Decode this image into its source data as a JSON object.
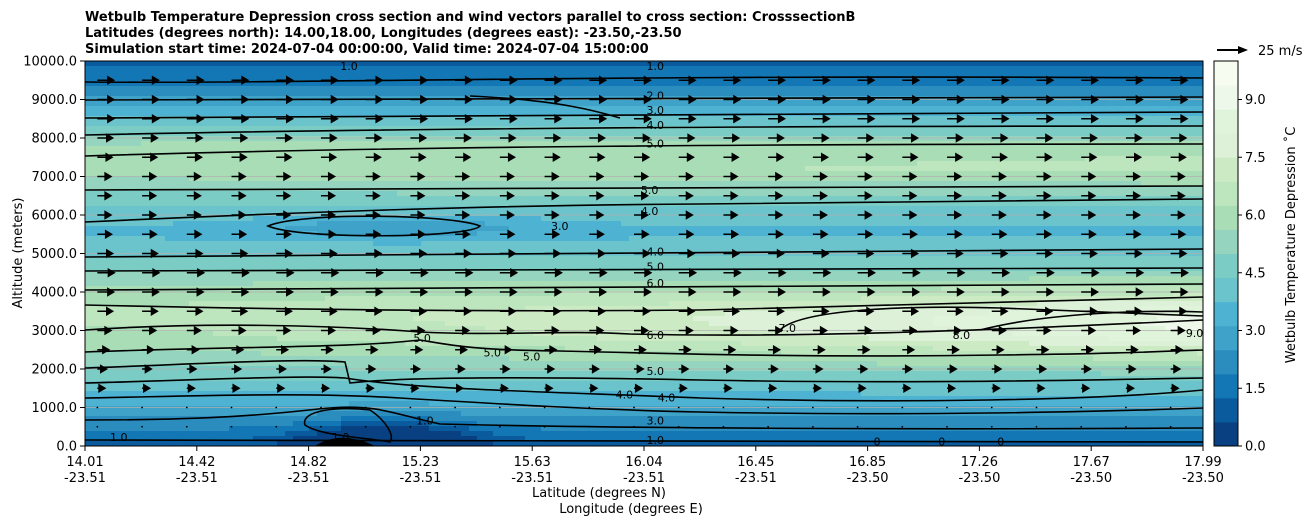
{
  "chart_data": {
    "type": "contour",
    "title": [
      "Wetbulb Temperature Depression cross section and wind vectors parallel to cross section: CrosssectionB",
      "Latitudes (degrees north): 14.00,18.00, Longitudes (degrees east): -23.50,-23.50",
      "Simulation start time: 2024-07-04 00:00:00, Valid time: 2024-07-04 15:00:00"
    ],
    "xlabel": "Latitude (degrees N)",
    "xlabel2": "Longitude (degrees E)",
    "ylabel": "Altitude (meters)",
    "x_ticks": [
      {
        "lat": "14.01",
        "lon": "-23.51"
      },
      {
        "lat": "14.42",
        "lon": "-23.51"
      },
      {
        "lat": "14.82",
        "lon": "-23.51"
      },
      {
        "lat": "15.23",
        "lon": "-23.51"
      },
      {
        "lat": "15.63",
        "lon": "-23.51"
      },
      {
        "lat": "16.04",
        "lon": "-23.51"
      },
      {
        "lat": "16.45",
        "lon": "-23.51"
      },
      {
        "lat": "16.85",
        "lon": "-23.50"
      },
      {
        "lat": "17.26",
        "lon": "-23.50"
      },
      {
        "lat": "17.67",
        "lon": "-23.50"
      },
      {
        "lat": "17.99",
        "lon": "-23.50"
      }
    ],
    "y_ticks": [
      "0.0",
      "1000.0",
      "2000.0",
      "3000.0",
      "4000.0",
      "5000.0",
      "6000.0",
      "7000.0",
      "8000.0",
      "9000.0",
      "10000.0"
    ],
    "ylim": [
      0,
      10000
    ],
    "grid": "horizontal",
    "colorbar": {
      "label": "Wetbulb Temperature Depression $^\\circ$C",
      "display_label": "Wetbulb Temperature Depression ˚C",
      "ticks": [
        "0.0",
        "1.5",
        "3.0",
        "4.5",
        "6.0",
        "7.5",
        "9.0"
      ],
      "range": [
        0,
        10
      ],
      "colormap": "GnBu_r",
      "colors": [
        "#084081",
        "#0a5a9e",
        "#1277b4",
        "#2b8cbe",
        "#3fa2c9",
        "#4eb3d3",
        "#6bc3cb",
        "#7bccc4",
        "#95d5bf",
        "#a8ddb5",
        "#bde5be",
        "#ccebc5",
        "#dcf1d7",
        "#e0f3db",
        "#eef8ea",
        "#f7fcf0"
      ]
    },
    "quiver_key": {
      "label": "25 m/s",
      "speed": 25
    },
    "contour_labels": [
      {
        "text": "1.0",
        "x": 16.04,
        "y": 9870
      },
      {
        "text": "2.0",
        "x": 16.04,
        "y": 9100
      },
      {
        "text": "3.0",
        "x": 16.04,
        "y": 8730
      },
      {
        "text": "4.0",
        "x": 16.04,
        "y": 8340
      },
      {
        "text": "5.0",
        "x": 16.04,
        "y": 7860
      },
      {
        "text": "5.0",
        "x": 16.02,
        "y": 6650
      },
      {
        "text": "4.0",
        "x": 16.02,
        "y": 6100
      },
      {
        "text": "3.0",
        "x": 15.7,
        "y": 5720
      },
      {
        "text": "4.0",
        "x": 16.04,
        "y": 5050
      },
      {
        "text": "5.0",
        "x": 16.04,
        "y": 4660
      },
      {
        "text": "6.0",
        "x": 16.04,
        "y": 4240
      },
      {
        "text": "6.0",
        "x": 16.04,
        "y": 2880
      },
      {
        "text": "5.0",
        "x": 16.04,
        "y": 1950
      },
      {
        "text": "4.0",
        "x": 15.93,
        "y": 1340
      },
      {
        "text": "4.0",
        "x": 16.08,
        "y": 1260
      },
      {
        "text": "3.0",
        "x": 16.04,
        "y": 660
      },
      {
        "text": "1.0",
        "x": 16.04,
        "y": 160
      },
      {
        "text": "7.0",
        "x": 16.51,
        "y": 3070
      },
      {
        "text": "8.0",
        "x": 17.13,
        "y": 2880
      },
      {
        "text": "9.0",
        "x": 17.96,
        "y": 2940
      },
      {
        "text": "5.0",
        "x": 15.21,
        "y": 2800
      },
      {
        "text": "5.0",
        "x": 15.46,
        "y": 2430
      },
      {
        "text": "5.0",
        "x": 15.6,
        "y": 2320
      },
      {
        "text": "1.0",
        "x": 15.22,
        "y": 660
      },
      {
        "text": "1.0",
        "x": 14.13,
        "y": 230
      },
      {
        "text": "1.0",
        "x": 14.92,
        "y": 230
      },
      {
        "text": "1.0",
        "x": 14.95,
        "y": 9870
      },
      {
        "text": "0",
        "x": 16.83,
        "y": 120
      },
      {
        "text": "0",
        "x": 17.06,
        "y": 120
      },
      {
        "text": "0",
        "x": 17.27,
        "y": 120
      }
    ],
    "wind_vectors": [
      {
        "y": 9500,
        "u": 0.95
      },
      {
        "y": 9000,
        "u": 0.95
      },
      {
        "y": 8500,
        "u": 0.95
      },
      {
        "y": 8000,
        "u": 0.85
      },
      {
        "y": 7500,
        "u": 0.8
      },
      {
        "y": 7000,
        "u": 0.7
      },
      {
        "y": 6500,
        "u": 0.7
      },
      {
        "y": 6000,
        "u": 0.7
      },
      {
        "y": 5500,
        "u": 0.75
      },
      {
        "y": 5000,
        "u": 0.85
      },
      {
        "y": 4500,
        "u": 1.0
      },
      {
        "y": 4000,
        "u": 0.95
      },
      {
        "y": 3500,
        "u": 0.85
      },
      {
        "y": 3000,
        "u": 0.7
      },
      {
        "y": 2500,
        "u": 0.5
      },
      {
        "y": 2000,
        "u": 0.3
      },
      {
        "y": 1500,
        "u": 0.15
      },
      {
        "y": 1000,
        "u": 0.05
      },
      {
        "y": 500,
        "u": 0.03
      }
    ]
  }
}
